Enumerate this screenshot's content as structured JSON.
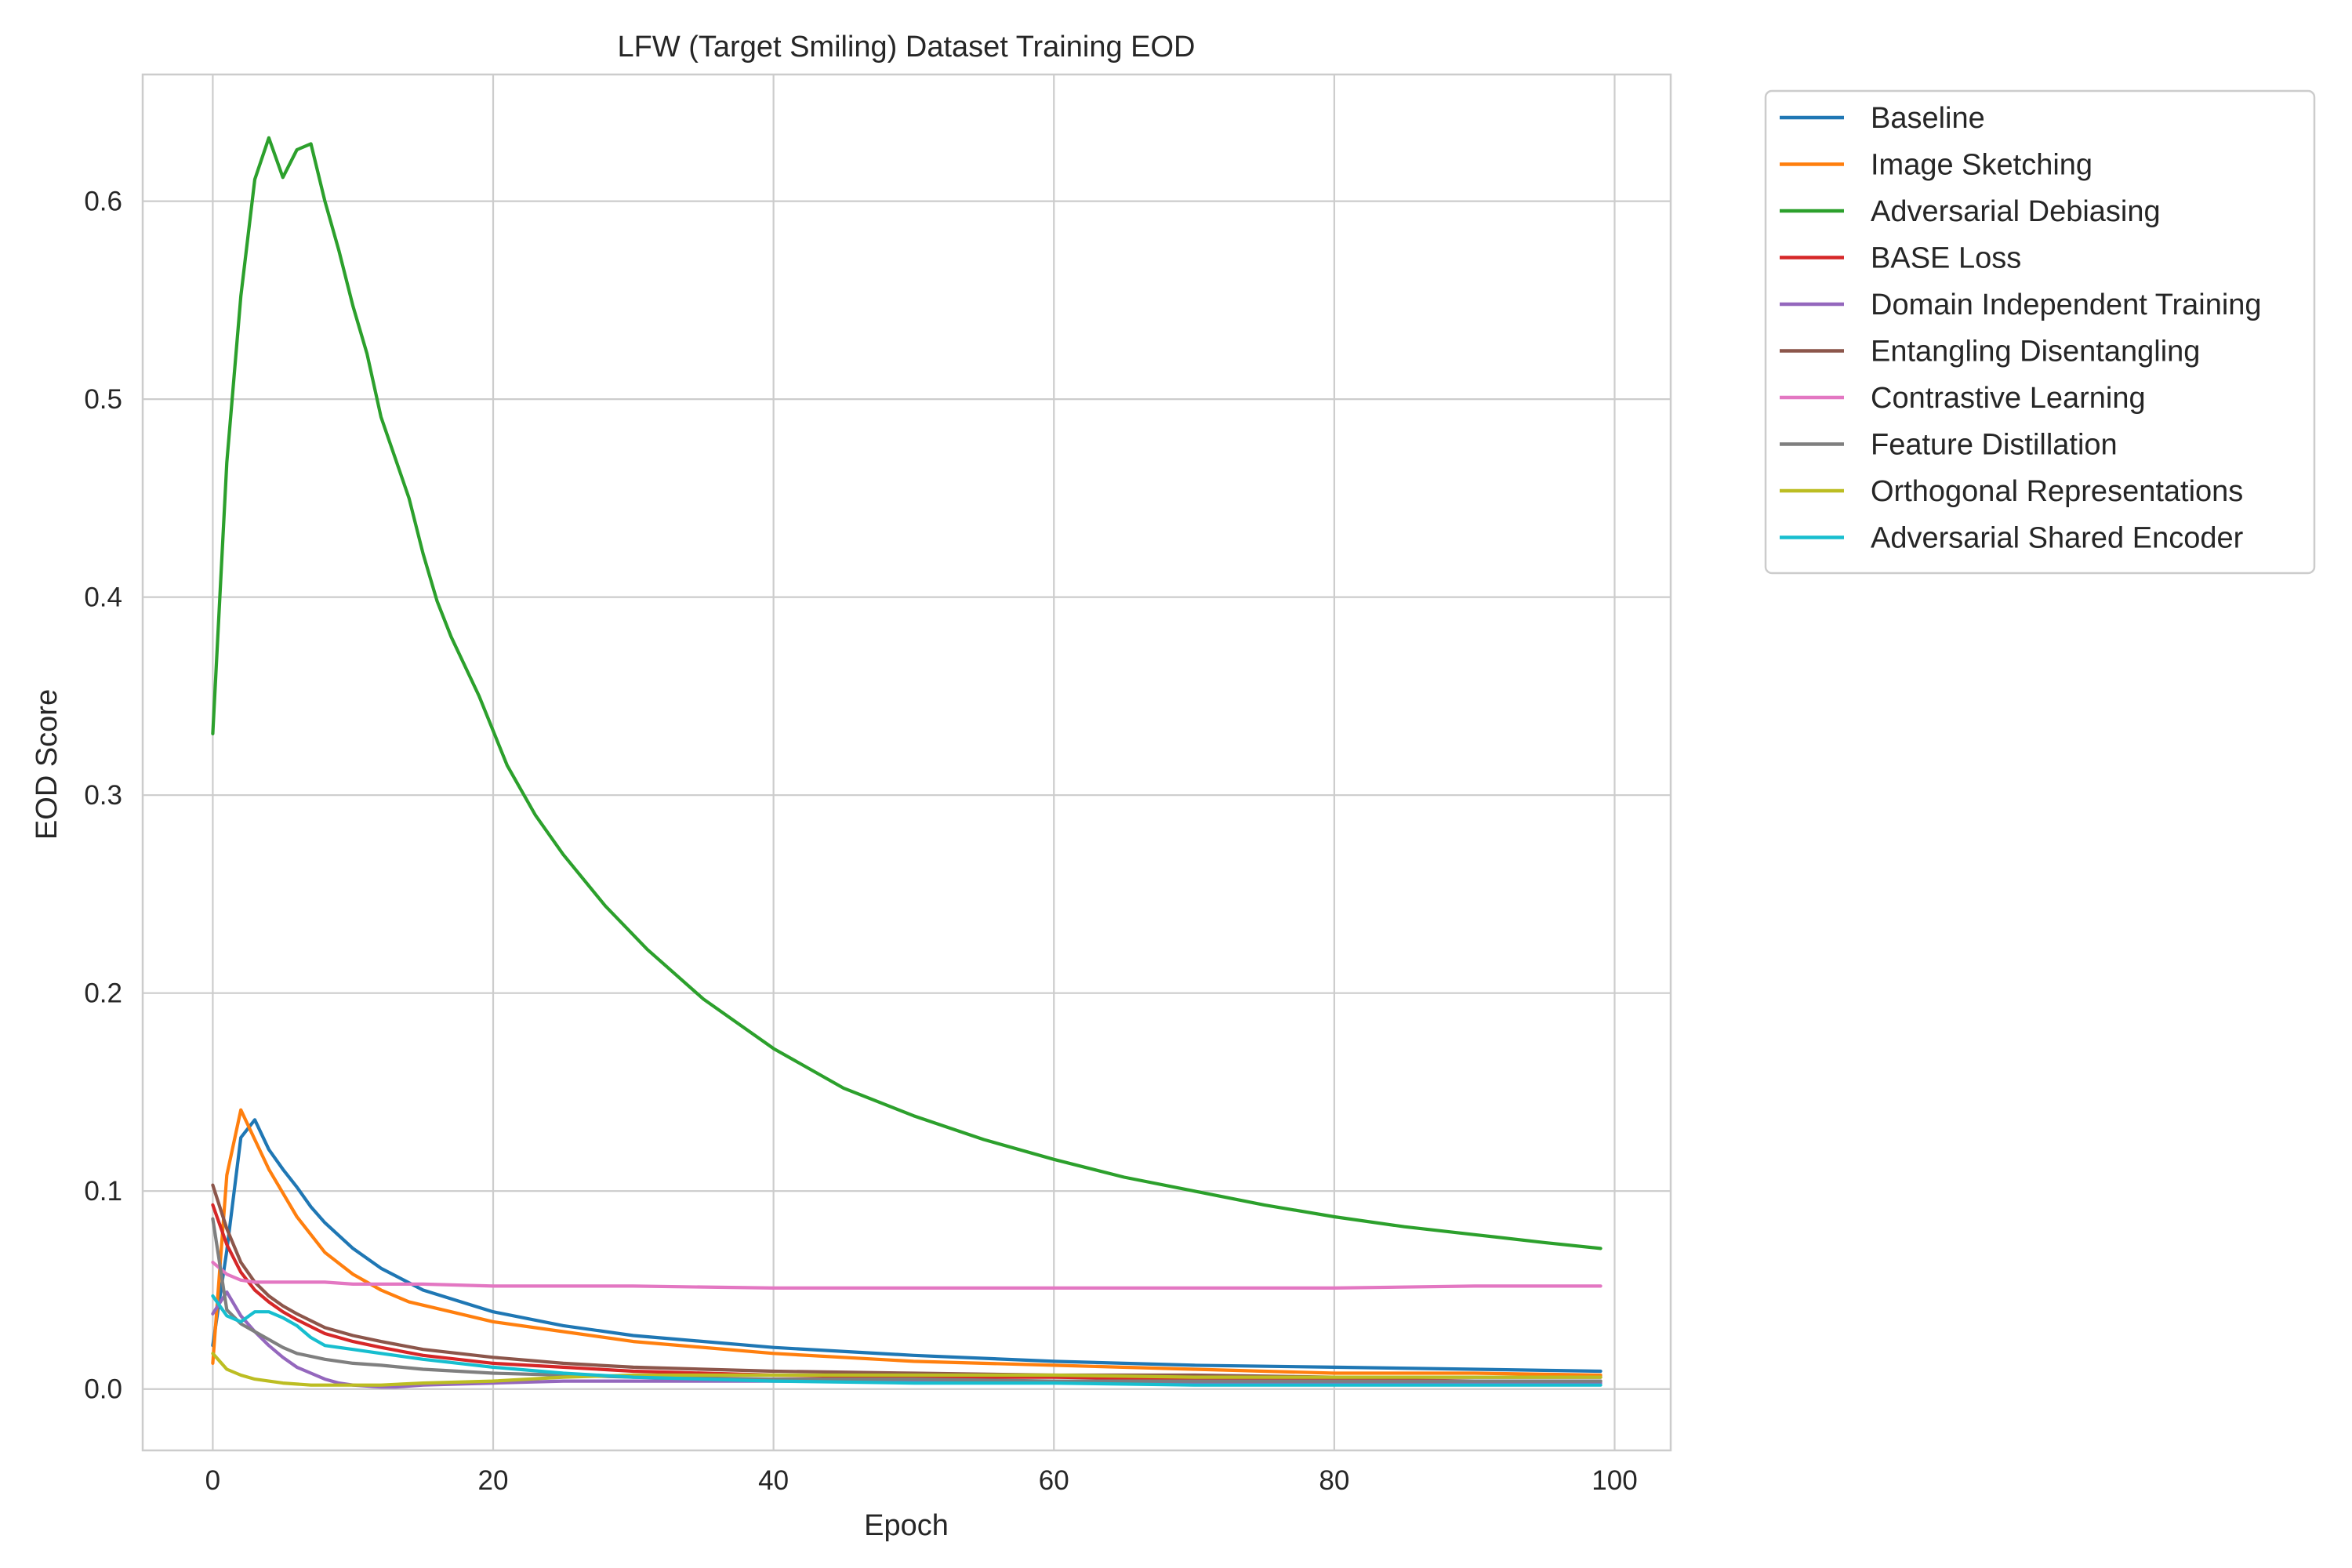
{
  "chart_data": {
    "type": "line",
    "title": "LFW (Target Smiling) Dataset Training EOD",
    "xlabel": "Epoch",
    "ylabel": "EOD Score",
    "xlim": [
      -5,
      104
    ],
    "ylim": [
      -0.031,
      0.664
    ],
    "xticks": [
      0,
      20,
      40,
      60,
      80,
      100
    ],
    "yticks": [
      0.0,
      0.1,
      0.2,
      0.3,
      0.4,
      0.5,
      0.6
    ],
    "xtick_labels": [
      "0",
      "20",
      "40",
      "60",
      "80",
      "100"
    ],
    "ytick_labels": [
      "0.0",
      "0.1",
      "0.2",
      "0.3",
      "0.4",
      "0.5",
      "0.6"
    ],
    "grid": true,
    "legend_position": "outside upper right",
    "series": [
      {
        "name": "Baseline",
        "color": "#1f77b4",
        "x": [
          0,
          1,
          2,
          3,
          4,
          5,
          6,
          7,
          8,
          10,
          12,
          15,
          20,
          25,
          30,
          40,
          50,
          60,
          70,
          80,
          90,
          99
        ],
        "y": [
          0.022,
          0.07,
          0.127,
          0.136,
          0.121,
          0.111,
          0.102,
          0.092,
          0.084,
          0.071,
          0.061,
          0.05,
          0.039,
          0.032,
          0.027,
          0.021,
          0.017,
          0.014,
          0.012,
          0.011,
          0.01,
          0.009
        ]
      },
      {
        "name": "Image Sketching",
        "color": "#ff7f0e",
        "x": [
          0,
          1,
          2,
          3,
          4,
          5,
          6,
          8,
          10,
          12,
          14,
          17,
          20,
          25,
          30,
          40,
          50,
          60,
          70,
          80,
          90,
          99
        ],
        "y": [
          0.013,
          0.108,
          0.141,
          0.126,
          0.111,
          0.099,
          0.087,
          0.069,
          0.058,
          0.05,
          0.044,
          0.039,
          0.034,
          0.029,
          0.024,
          0.018,
          0.014,
          0.012,
          0.01,
          0.008,
          0.008,
          0.007
        ]
      },
      {
        "name": "Adversarial Debiasing",
        "color": "#2ca02c",
        "x": [
          0,
          1,
          2,
          3,
          4,
          5,
          6,
          7,
          8,
          9,
          10,
          11,
          12,
          14,
          15,
          16,
          17,
          19,
          21,
          23,
          25,
          28,
          31,
          35,
          40,
          45,
          50,
          55,
          60,
          65,
          70,
          75,
          80,
          85,
          90,
          95,
          99
        ],
        "y": [
          0.331,
          0.468,
          0.552,
          0.611,
          0.632,
          0.612,
          0.626,
          0.629,
          0.6,
          0.575,
          0.547,
          0.523,
          0.491,
          0.45,
          0.422,
          0.398,
          0.38,
          0.35,
          0.315,
          0.29,
          0.27,
          0.244,
          0.222,
          0.197,
          0.172,
          0.152,
          0.138,
          0.126,
          0.116,
          0.107,
          0.1,
          0.093,
          0.087,
          0.082,
          0.078,
          0.074,
          0.071
        ]
      },
      {
        "name": "BASE Loss",
        "color": "#d62728",
        "x": [
          0,
          1,
          2,
          3,
          4,
          5,
          6,
          8,
          10,
          12,
          15,
          20,
          25,
          30,
          40,
          50,
          60,
          70,
          80,
          90,
          99
        ],
        "y": [
          0.093,
          0.073,
          0.059,
          0.05,
          0.044,
          0.039,
          0.035,
          0.028,
          0.024,
          0.021,
          0.017,
          0.013,
          0.011,
          0.009,
          0.007,
          0.006,
          0.006,
          0.005,
          0.005,
          0.004,
          0.004
        ]
      },
      {
        "name": "Domain Independent Training",
        "color": "#9467bd",
        "x": [
          0,
          1,
          2,
          3,
          4,
          5,
          6,
          7,
          8,
          9,
          10,
          12,
          13,
          15,
          20,
          25,
          30,
          40,
          50,
          60,
          70,
          80,
          90,
          99
        ],
        "y": [
          0.038,
          0.049,
          0.037,
          0.029,
          0.022,
          0.016,
          0.011,
          0.008,
          0.005,
          0.003,
          0.002,
          0.001,
          0.001,
          0.002,
          0.003,
          0.004,
          0.004,
          0.004,
          0.004,
          0.004,
          0.003,
          0.003,
          0.003,
          0.003
        ]
      },
      {
        "name": "Entangling Disentangling",
        "color": "#8c564b",
        "x": [
          0,
          1,
          2,
          3,
          4,
          5,
          6,
          8,
          10,
          12,
          15,
          20,
          25,
          30,
          40,
          50,
          60,
          70,
          80,
          90,
          99
        ],
        "y": [
          0.103,
          0.081,
          0.064,
          0.054,
          0.047,
          0.042,
          0.038,
          0.031,
          0.027,
          0.024,
          0.02,
          0.016,
          0.013,
          0.011,
          0.009,
          0.008,
          0.007,
          0.007,
          0.006,
          0.006,
          0.006
        ]
      },
      {
        "name": "Contrastive Learning",
        "color": "#e377c2",
        "x": [
          0,
          1,
          2,
          3,
          5,
          8,
          10,
          15,
          20,
          30,
          40,
          50,
          60,
          70,
          80,
          90,
          99
        ],
        "y": [
          0.064,
          0.058,
          0.055,
          0.054,
          0.054,
          0.054,
          0.053,
          0.053,
          0.052,
          0.052,
          0.051,
          0.051,
          0.051,
          0.051,
          0.051,
          0.052,
          0.052
        ]
      },
      {
        "name": "Feature Distillation",
        "color": "#7f7f7f",
        "x": [
          0,
          1,
          2,
          3,
          4,
          5,
          6,
          8,
          10,
          12,
          15,
          20,
          25,
          30,
          40,
          50,
          60,
          70,
          80,
          90,
          99
        ],
        "y": [
          0.086,
          0.04,
          0.033,
          0.029,
          0.025,
          0.021,
          0.018,
          0.015,
          0.013,
          0.012,
          0.01,
          0.008,
          0.007,
          0.006,
          0.005,
          0.005,
          0.004,
          0.004,
          0.004,
          0.004,
          0.004
        ]
      },
      {
        "name": "Orthogonal Representations",
        "color": "#bcbd22",
        "x": [
          0,
          1,
          2,
          3,
          4,
          5,
          7,
          10,
          12,
          15,
          20,
          25,
          30,
          40,
          50,
          60,
          70,
          80,
          90,
          99
        ],
        "y": [
          0.018,
          0.01,
          0.007,
          0.005,
          0.004,
          0.003,
          0.002,
          0.002,
          0.002,
          0.003,
          0.004,
          0.006,
          0.007,
          0.007,
          0.007,
          0.007,
          0.006,
          0.006,
          0.006,
          0.006
        ]
      },
      {
        "name": "Adversarial Shared Encoder",
        "color": "#17becf",
        "x": [
          0,
          1,
          2,
          3,
          4,
          5,
          6,
          7,
          8,
          10,
          12,
          15,
          20,
          25,
          30,
          40,
          50,
          60,
          70,
          80,
          90,
          99
        ],
        "y": [
          0.047,
          0.037,
          0.034,
          0.039,
          0.039,
          0.036,
          0.032,
          0.026,
          0.022,
          0.02,
          0.018,
          0.015,
          0.011,
          0.008,
          0.006,
          0.004,
          0.003,
          0.003,
          0.002,
          0.002,
          0.002,
          0.002
        ]
      }
    ]
  }
}
